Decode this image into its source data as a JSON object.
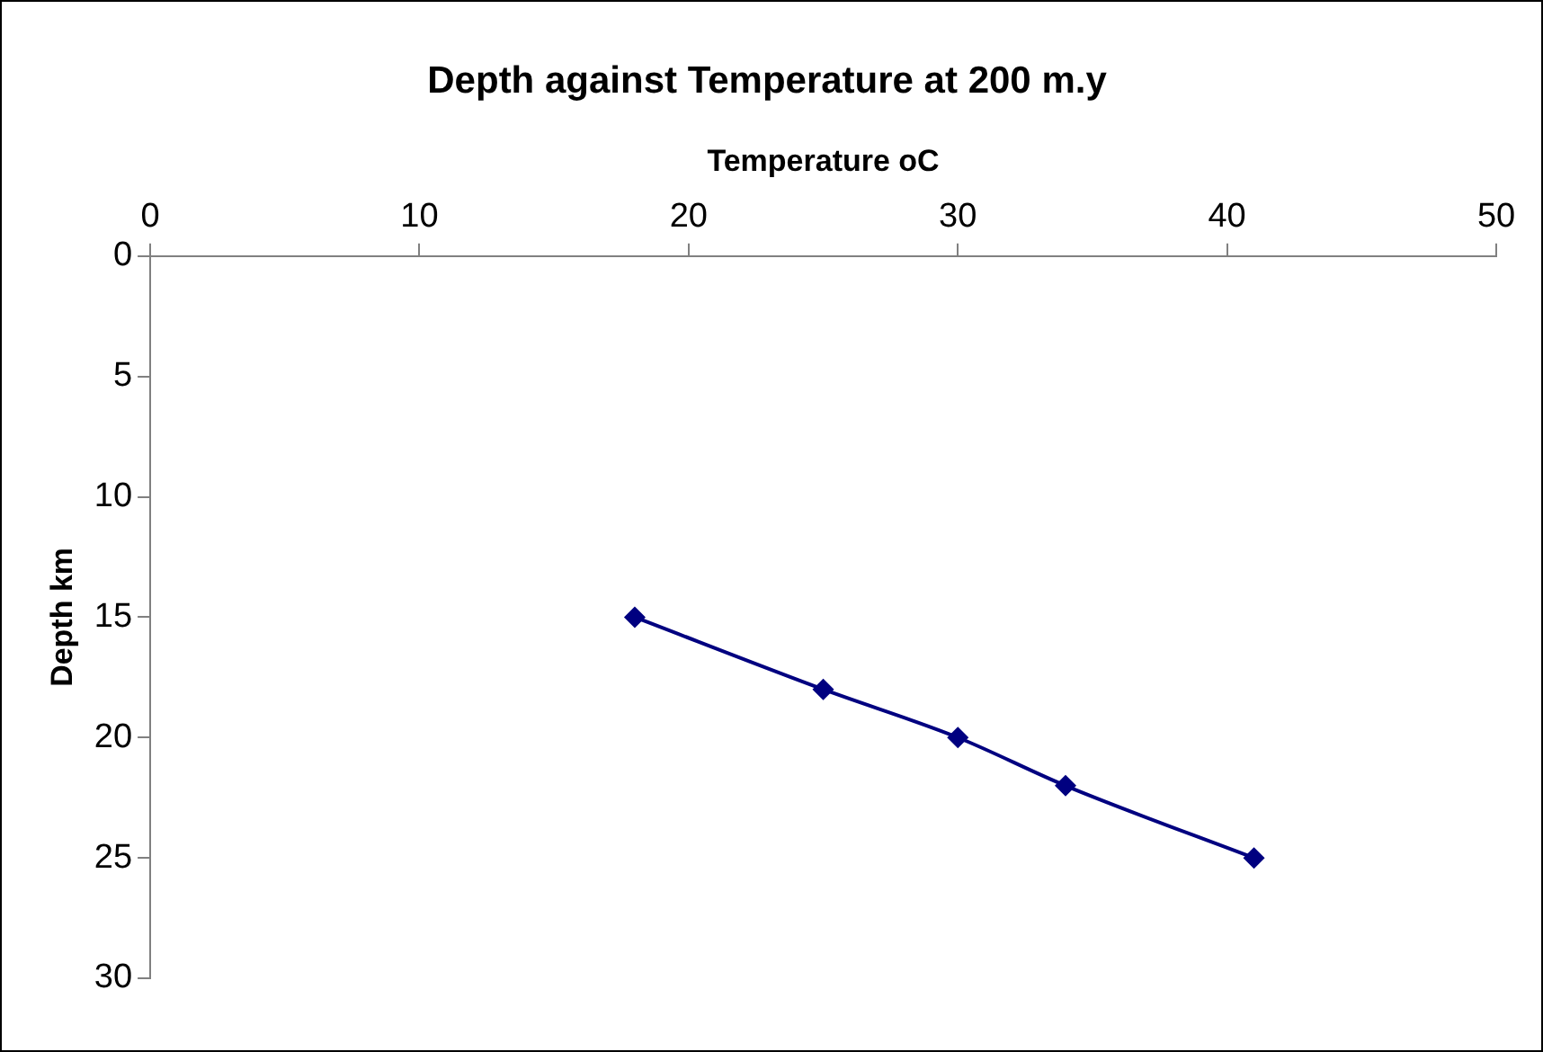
{
  "chart_data": {
    "type": "line",
    "title": "Depth against Temperature at 200 m.y",
    "xlabel": "Temperature oC",
    "ylabel": "Depth km",
    "x": [
      18,
      25,
      30,
      34,
      41
    ],
    "series": [
      {
        "color": "#000080",
        "values": [
          15,
          18,
          20,
          22,
          25
        ]
      }
    ],
    "xlim": [
      0,
      50
    ],
    "xticks": [
      0,
      10,
      20,
      30,
      40,
      50
    ],
    "ylim": [
      30,
      0
    ],
    "yticks": [
      0,
      5,
      10,
      15,
      20,
      25,
      30
    ],
    "grid": false,
    "legend": false,
    "marker": "diamond",
    "line_style": "solid"
  }
}
